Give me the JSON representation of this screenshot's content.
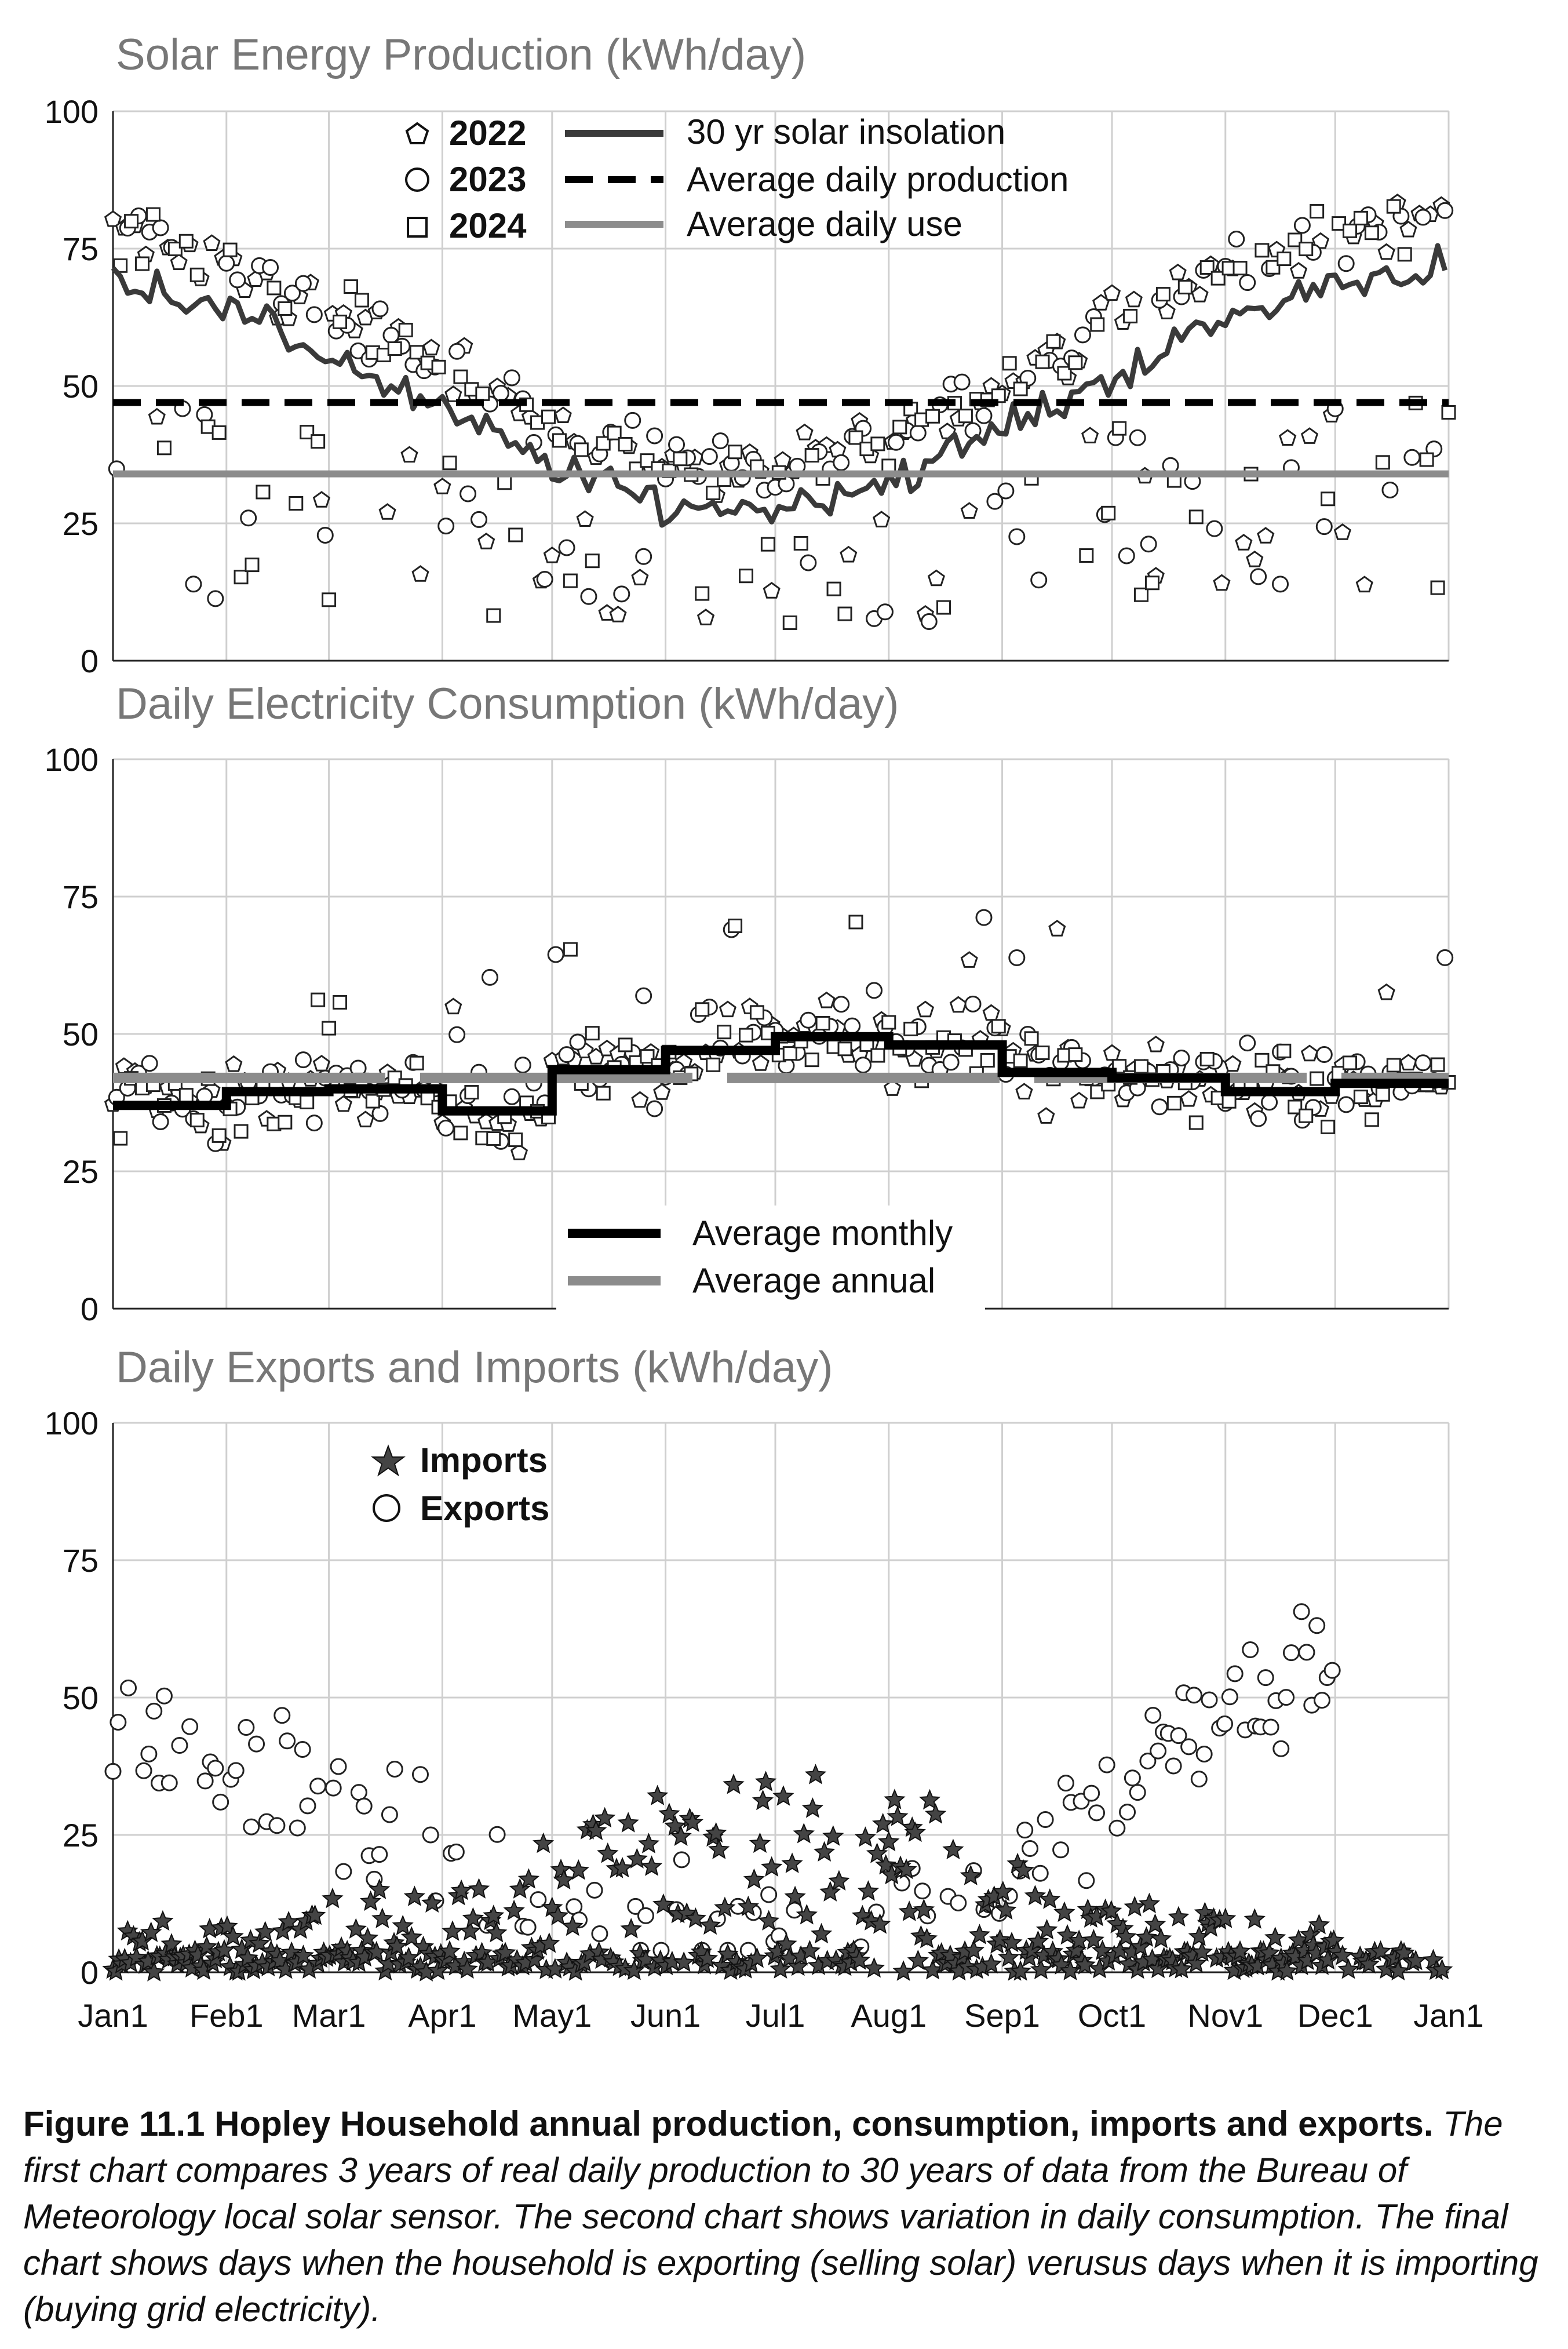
{
  "figure": {
    "caption_title": "Figure 11.1 Hopley Household annual production, consumption, imports and exports.",
    "caption_body": "The first chart compares 3 years of real daily production to 30 years of data from the Bureau of Meteorology local solar sensor. The second chart shows variation in daily consumption. The final chart shows days when the household is exporting (selling solar) verusus days when it is importing (buying grid electricity)."
  },
  "colors": {
    "dark": "#3a3a3a",
    "gray": "#8c8c8c",
    "black": "#000000",
    "grid": "#cfcfcf",
    "title": "#777777"
  },
  "chart_data": [
    {
      "type": "scatter",
      "title": "Solar Energy Production (kWh/day)",
      "xlabel": "",
      "ylabel": "",
      "ylim": [
        0,
        100
      ],
      "yticks": [
        "0",
        "25",
        "50",
        "75",
        "100"
      ],
      "legend": {
        "markers": [
          {
            "name": "2022",
            "marker": "pentagon"
          },
          {
            "name": "2023",
            "marker": "circle"
          },
          {
            "name": "2024",
            "marker": "square"
          }
        ],
        "lines": [
          "30 yr solar insolation",
          "Average daily production",
          "Average daily use"
        ]
      },
      "insolation_monthly": [
        70,
        64,
        55,
        45,
        35,
        28,
        28,
        33,
        42,
        52,
        62,
        69,
        72
      ],
      "production_monthly_mean": [
        78,
        73,
        63,
        53,
        42,
        35,
        34,
        40,
        50,
        62,
        72,
        78,
        82
      ],
      "average_daily_production": 47,
      "average_daily_use": 34
    },
    {
      "type": "scatter",
      "title": "Daily Electricity Consumption (kWh/day)",
      "xlabel": "",
      "ylabel": "",
      "ylim": [
        0,
        100
      ],
      "yticks": [
        "0",
        "25",
        "50",
        "75",
        "100"
      ],
      "legend": {
        "lines": [
          "Average monthly",
          "Average annual"
        ]
      },
      "monthly_average": [
        37,
        39.5,
        40,
        36,
        43.5,
        47,
        49.5,
        48,
        43,
        42,
        39.5,
        41
      ],
      "annual_average": 42
    },
    {
      "type": "scatter",
      "title": "Daily Exports and Imports (kWh/day)",
      "xlabel": "",
      "ylabel": "",
      "ylim": [
        0,
        100
      ],
      "yticks": [
        "0",
        "25",
        "50",
        "75",
        "100"
      ],
      "legend": {
        "markers": [
          {
            "name": "Imports",
            "marker": "star"
          },
          {
            "name": "Exports",
            "marker": "circle"
          }
        ]
      },
      "imports_monthly_mean": [
        4,
        6,
        8,
        10,
        15,
        20,
        22,
        20,
        12,
        8,
        6,
        5
      ],
      "exports_monthly_mean": [
        45,
        38,
        30,
        22,
        12,
        6,
        5,
        7,
        18,
        35,
        50,
        55
      ]
    }
  ],
  "x_axis": {
    "labels": [
      "Jan1",
      "Feb1",
      "Mar1",
      "Apr1",
      "May1",
      "Jun1",
      "Jul1",
      "Aug1",
      "Sep1",
      "Oct1",
      "Nov1",
      "Dec1",
      "Jan1"
    ],
    "month_start_days": [
      0,
      31,
      59,
      90,
      120,
      151,
      181,
      212,
      243,
      273,
      304,
      334,
      365
    ]
  }
}
